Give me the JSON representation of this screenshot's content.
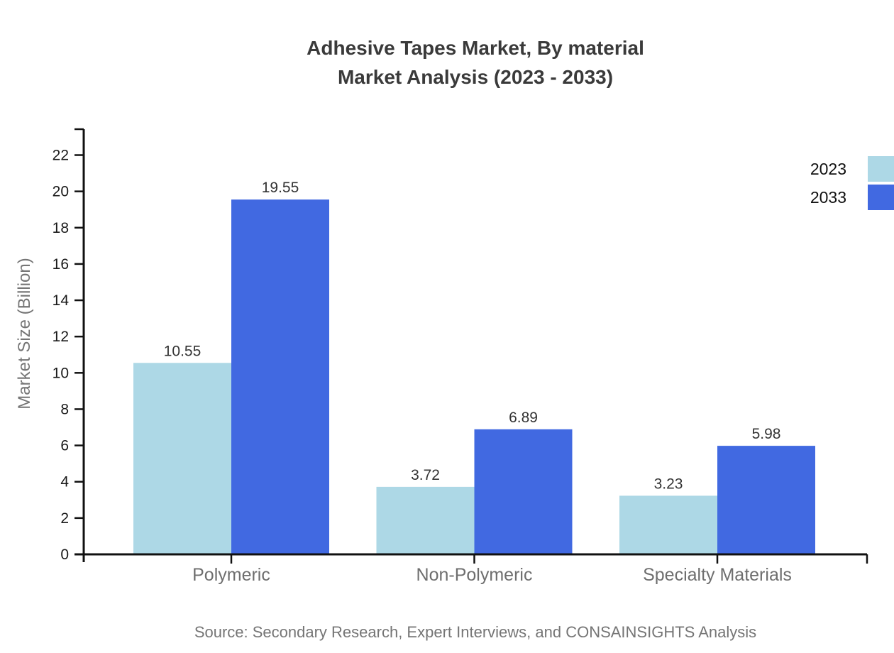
{
  "title": {
    "line1": "Adhesive Tapes Market, By material",
    "line2": "Market Analysis (2023 - 2033)"
  },
  "source": "Source: Secondary Research, Expert Interviews, and CONSAINSIGHTS Analysis",
  "chart_data": {
    "type": "bar",
    "title": "Adhesive Tapes Market, By material Market Analysis (2023 - 2033)",
    "categories": [
      "Polymeric",
      "Non-Polymeric",
      "Specialty Materials"
    ],
    "series": [
      {
        "name": "2023",
        "color": "#ADD8E6",
        "values": [
          10.55,
          3.72,
          3.23
        ]
      },
      {
        "name": "2033",
        "color": "#4169E1",
        "values": [
          19.55,
          6.89,
          5.98
        ]
      }
    ],
    "xlabel": "",
    "ylabel": "Market Size (Billion)",
    "ylim": [
      0,
      23.4
    ],
    "yticks": [
      0,
      2,
      4,
      6,
      8,
      10,
      12,
      14,
      16,
      18,
      20,
      22
    ],
    "grid": false,
    "value_labels": true,
    "value_label_color": "#333333",
    "axis_color": "#111111",
    "background": "#ffffff",
    "legend_position": "top-right"
  }
}
